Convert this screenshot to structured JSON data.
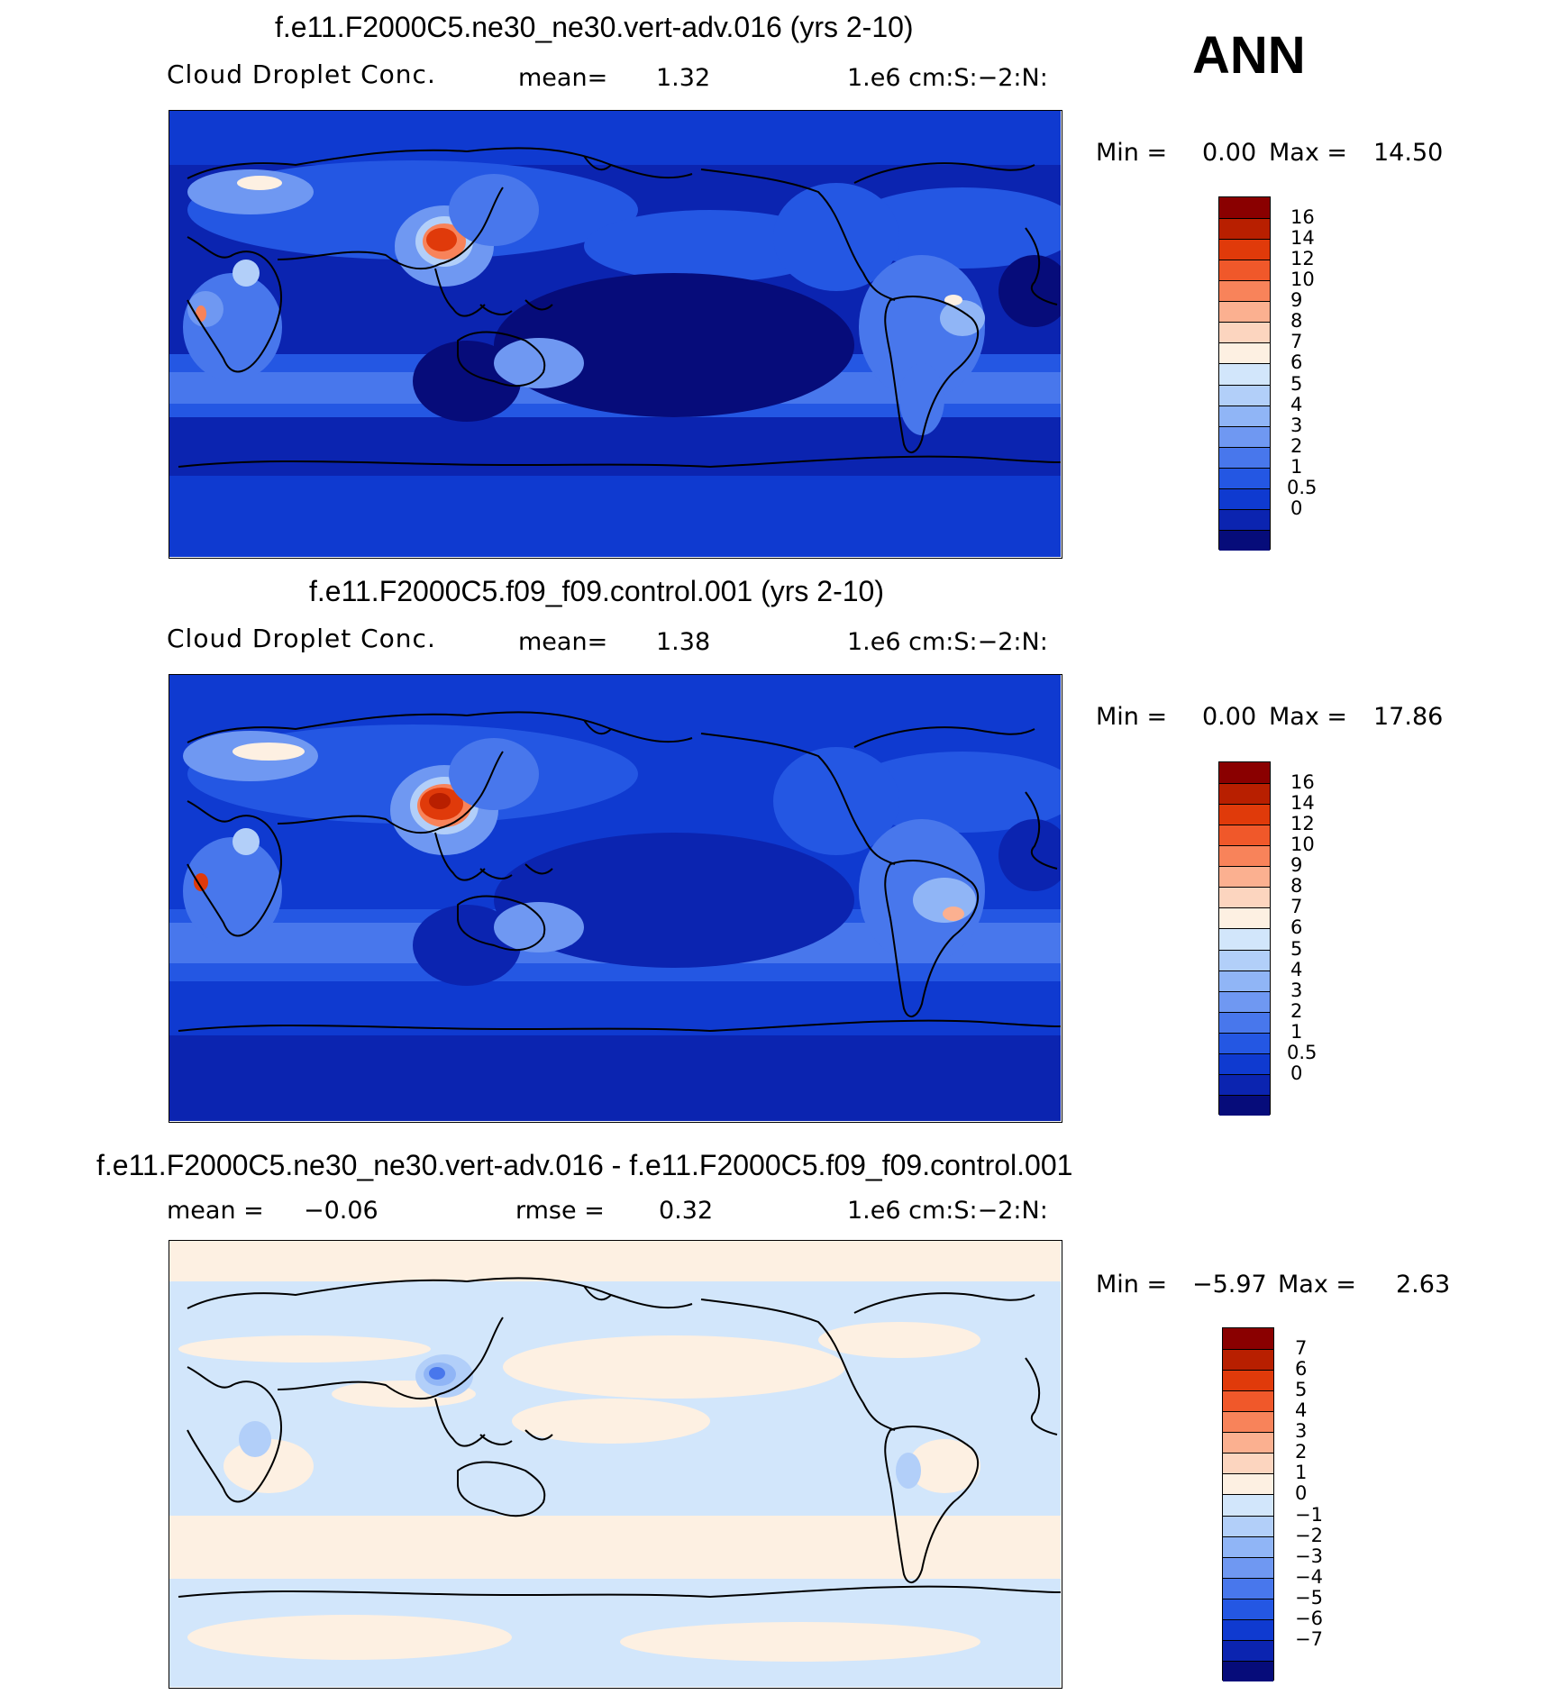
{
  "season": "ANN",
  "panels": [
    {
      "title": "f.e11.F2000C5.ne30_ne30.vert-adv.016 (yrs 2-10)",
      "left_label": "Cloud Droplet Conc.",
      "mid_label": "mean=",
      "mid_value": "1.32",
      "units": "1.e6 cm:S:−2:N:",
      "min_label": "Min =",
      "min_value": "0.00",
      "max_label": "Max =",
      "max_value": "14.50",
      "colorbar": {
        "ticks": [
          "16",
          "14",
          "12",
          "10",
          "9",
          "8",
          "7",
          "6",
          "5",
          "4",
          "3",
          "2",
          "1",
          "0.5",
          "0"
        ],
        "colors": [
          "#8a0000",
          "#b81f00",
          "#e03a0a",
          "#f0582a",
          "#f8835a",
          "#fbb090",
          "#fcd5bf",
          "#fdf0e2",
          "#d2e6fb",
          "#b2cff9",
          "#90b5f6",
          "#6f98f2",
          "#4877ec",
          "#2457e3",
          "#0f3ad0",
          "#0b24b0",
          "#060c7a"
        ],
        "levels": [
          16,
          14,
          12,
          10,
          9,
          8,
          7,
          6,
          5,
          4,
          3,
          2,
          1,
          0.5,
          0
        ]
      }
    },
    {
      "title": "f.e11.F2000C5.f09_f09.control.001 (yrs 2-10)",
      "left_label": "Cloud Droplet Conc.",
      "mid_label": "mean=",
      "mid_value": "1.38",
      "units": "1.e6 cm:S:−2:N:",
      "min_label": "Min =",
      "min_value": "0.00",
      "max_label": "Max =",
      "max_value": "17.86",
      "colorbar": {
        "ticks": [
          "16",
          "14",
          "12",
          "10",
          "9",
          "8",
          "7",
          "6",
          "5",
          "4",
          "3",
          "2",
          "1",
          "0.5",
          "0"
        ],
        "colors": [
          "#8a0000",
          "#b81f00",
          "#e03a0a",
          "#f0582a",
          "#f8835a",
          "#fbb090",
          "#fcd5bf",
          "#fdf0e2",
          "#d2e6fb",
          "#b2cff9",
          "#90b5f6",
          "#6f98f2",
          "#4877ec",
          "#2457e3",
          "#0f3ad0",
          "#0b24b0",
          "#060c7a"
        ],
        "levels": [
          16,
          14,
          12,
          10,
          9,
          8,
          7,
          6,
          5,
          4,
          3,
          2,
          1,
          0.5,
          0
        ]
      }
    },
    {
      "title": "f.e11.F2000C5.ne30_ne30.vert-adv.016 - f.e11.F2000C5.f09_f09.control.001",
      "left_label": "mean =",
      "left_value": "−0.06",
      "mid_label": "rmse =",
      "mid_value": "0.32",
      "units": "1.e6 cm:S:−2:N:",
      "min_label": "Min =",
      "min_value": "−5.97",
      "max_label": "Max =",
      "max_value": "2.63",
      "colorbar": {
        "ticks": [
          "7",
          "6",
          "5",
          "4",
          "3",
          "2",
          "1",
          "0",
          "−1",
          "−2",
          "−3",
          "−4",
          "−5",
          "−6",
          "−7"
        ],
        "colors": [
          "#8a0000",
          "#b81f00",
          "#e03a0a",
          "#f0582a",
          "#f8835a",
          "#fbb090",
          "#fcd5bf",
          "#fdf0e2",
          "#d2e6fb",
          "#b2cff9",
          "#90b5f6",
          "#6f98f2",
          "#4877ec",
          "#2457e3",
          "#0f3ad0",
          "#0b24b0",
          "#060c7a"
        ],
        "levels": [
          7,
          6,
          5,
          4,
          3,
          2,
          1,
          0,
          -1,
          -2,
          -3,
          -4,
          -5,
          -6,
          -7
        ]
      }
    }
  ]
}
